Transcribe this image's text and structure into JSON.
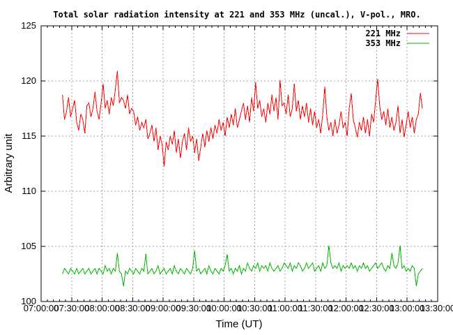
{
  "chart_data": {
    "type": "line",
    "title": "Total solar radiation intensity at 221 and 353 MHz (uncal.), V-pol., MRO.",
    "xlabel": "Time (UT)",
    "ylabel": "Arbitrary unit",
    "xlim": [
      7.0,
      13.5
    ],
    "ylim": [
      100,
      125
    ],
    "grid": true,
    "legend_position": "top-right-inside",
    "x_major_tick_interval_hours": 0.5,
    "x_minor_tick_interval_hours": 0.1,
    "y_major_tick_interval": 5,
    "x_ticks": [
      {
        "t": 7.0,
        "label": "07:00:00"
      },
      {
        "t": 7.5,
        "label": "07:30:00"
      },
      {
        "t": 8.0,
        "label": "08:00:00"
      },
      {
        "t": 8.5,
        "label": "08:30:00"
      },
      {
        "t": 9.0,
        "label": "09:00:00"
      },
      {
        "t": 9.5,
        "label": "09:30:00"
      },
      {
        "t": 10.0,
        "label": "10:00:00"
      },
      {
        "t": 10.5,
        "label": "10:30:00"
      },
      {
        "t": 11.0,
        "label": "11:00:00"
      },
      {
        "t": 11.5,
        "label": "11:30:00"
      },
      {
        "t": 12.0,
        "label": "12:00:00"
      },
      {
        "t": 12.5,
        "label": "12:30:00"
      },
      {
        "t": 13.0,
        "label": "13:00:00"
      },
      {
        "t": 13.5,
        "label": "13:30:00"
      }
    ],
    "y_ticks": [
      {
        "v": 100,
        "label": "100"
      },
      {
        "v": 105,
        "label": "105"
      },
      {
        "v": 110,
        "label": "110"
      },
      {
        "v": 115,
        "label": "115"
      },
      {
        "v": 120,
        "label": "120"
      },
      {
        "v": 125,
        "label": "125"
      }
    ],
    "colors": {
      "series_221": "#ff0000",
      "series_353": "#00b400",
      "grid": "#a0a0a0",
      "axis": "#000000",
      "background": "#ffffff"
    },
    "sampling_interval_minutes": 2,
    "series": [
      {
        "name": "221 MHz",
        "color": "#ff0000",
        "t_start_hours": 7.35,
        "t_step_hours": 0.0333333,
        "values": [
          118.75,
          116.5,
          117.25,
          118.5,
          116.75,
          117.5,
          118.25,
          116.25,
          115.5,
          117.0,
          116.5,
          115.25,
          117.75,
          118.0,
          116.75,
          117.5,
          119.0,
          117.25,
          116.5,
          118.0,
          119.75,
          117.5,
          118.25,
          117.0,
          118.5,
          117.75,
          119.25,
          120.9,
          118.0,
          118.5,
          118.25,
          117.5,
          118.75,
          117.0,
          117.5,
          117.25,
          116.0,
          116.75,
          115.5,
          116.25,
          115.75,
          116.5,
          114.75,
          115.25,
          116.0,
          114.5,
          115.75,
          113.75,
          115.0,
          114.25,
          112.25,
          114.5,
          113.75,
          115.0,
          114.25,
          115.5,
          113.5,
          114.75,
          113.0,
          114.5,
          115.25,
          113.75,
          115.75,
          114.5,
          115.0,
          113.5,
          114.75,
          112.75,
          114.0,
          115.25,
          114.0,
          115.5,
          114.5,
          115.75,
          114.75,
          116.0,
          115.25,
          116.5,
          115.5,
          116.25,
          115.0,
          116.75,
          115.75,
          117.0,
          116.0,
          117.5,
          115.75,
          116.5,
          117.25,
          118.0,
          116.5,
          117.75,
          116.25,
          118.5,
          117.25,
          119.9,
          117.5,
          118.25,
          116.75,
          117.5,
          116.25,
          118.0,
          117.0,
          118.75,
          117.25,
          118.5,
          116.5,
          120.1,
          117.75,
          118.0,
          117.0,
          118.75,
          116.75,
          117.5,
          119.75,
          117.25,
          118.25,
          116.5,
          117.75,
          116.75,
          118.0,
          116.25,
          117.5,
          116.0,
          117.25,
          115.75,
          116.5,
          115.25,
          117.0,
          119.5,
          116.75,
          115.5,
          116.25,
          115.0,
          116.5,
          115.25,
          116.0,
          117.25,
          115.75,
          116.25,
          115.0,
          117.5,
          118.9,
          116.5,
          115.75,
          114.9,
          116.25,
          115.5,
          116.75,
          115.25,
          116.5,
          115.0,
          117.0,
          116.25,
          118.25,
          120.2,
          117.75,
          116.5,
          117.25,
          116.0,
          117.5,
          115.75,
          116.75,
          115.5,
          116.25,
          117.75,
          115.25,
          116.5,
          114.9,
          116.0,
          117.25,
          115.75,
          116.75,
          115.25,
          116.5,
          117.0,
          118.9,
          117.5
        ]
      },
      {
        "name": "353 MHz",
        "color": "#00b400",
        "t_start_hours": 7.35,
        "t_step_hours": 0.0333333,
        "values": [
          102.5,
          103.0,
          102.75,
          102.5,
          103.0,
          102.75,
          102.5,
          103.0,
          102.5,
          102.75,
          103.0,
          102.5,
          102.75,
          103.0,
          102.5,
          102.75,
          103.0,
          102.5,
          103.0,
          102.75,
          102.5,
          103.25,
          102.75,
          103.0,
          102.5,
          103.0,
          102.75,
          104.4,
          102.75,
          102.5,
          101.4,
          102.75,
          102.5,
          103.0,
          102.75,
          102.5,
          103.0,
          102.75,
          102.5,
          103.0,
          102.75,
          104.3,
          102.5,
          102.75,
          103.0,
          102.5,
          102.75,
          103.25,
          102.5,
          102.75,
          103.0,
          102.5,
          102.75,
          103.0,
          102.5,
          103.25,
          102.75,
          102.5,
          103.0,
          102.75,
          102.5,
          103.0,
          102.75,
          102.5,
          103.0,
          104.6,
          102.75,
          103.0,
          102.5,
          102.75,
          103.0,
          102.5,
          103.25,
          102.75,
          102.5,
          103.0,
          102.75,
          102.5,
          103.0,
          102.75,
          103.25,
          104.3,
          102.75,
          103.0,
          102.5,
          103.0,
          102.75,
          103.25,
          102.5,
          103.0,
          102.75,
          103.5,
          103.0,
          102.75,
          103.25,
          103.0,
          103.5,
          102.75,
          103.25,
          103.0,
          103.25,
          102.75,
          103.5,
          103.0,
          102.75,
          103.0,
          103.25,
          102.75,
          103.0,
          103.5,
          103.25,
          103.0,
          103.5,
          102.75,
          103.25,
          103.0,
          103.5,
          103.25,
          102.75,
          103.0,
          103.5,
          103.0,
          103.25,
          103.5,
          102.75,
          103.0,
          103.25,
          102.75,
          103.5,
          103.0,
          103.25,
          105.1,
          103.5,
          103.0,
          103.25,
          103.0,
          103.5,
          102.75,
          103.25,
          103.0,
          103.25,
          103.0,
          103.5,
          103.0,
          103.25,
          102.75,
          103.25,
          103.0,
          103.5,
          103.0,
          103.25,
          102.75,
          103.0,
          103.25,
          103.5,
          103.0,
          103.25,
          103.5,
          103.0,
          102.75,
          103.25,
          103.0,
          104.4,
          103.25,
          103.0,
          103.5,
          105.1,
          103.0,
          103.25,
          102.75,
          103.0,
          102.75,
          103.25,
          103.0,
          101.4,
          102.5,
          102.75,
          103.0
        ]
      }
    ]
  }
}
